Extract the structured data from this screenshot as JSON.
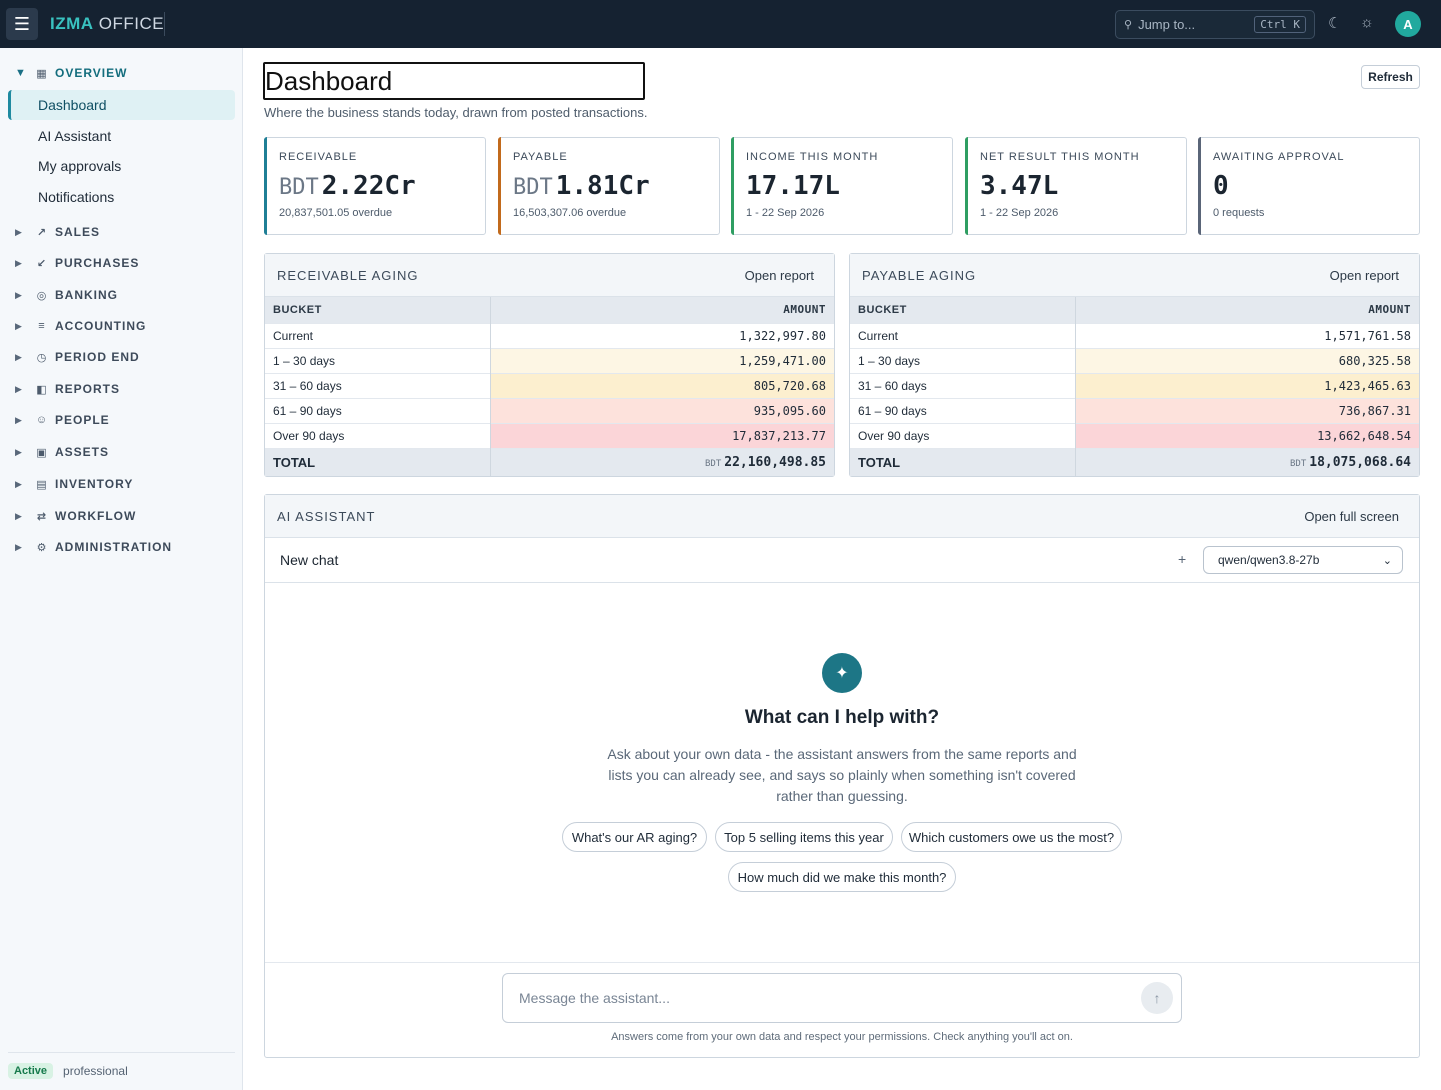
{
  "topbar": {
    "brand_accent": "IZMA",
    "brand_rest": "OFFICE",
    "jump_placeholder": "Jump to...",
    "jump_shortcut": "Ctrl K",
    "avatar_initial": "A"
  },
  "sidebar": {
    "groups": [
      {
        "label": "OVERVIEW",
        "icon": "grid-icon"
      },
      {
        "label": "SALES",
        "icon": "trend-up-icon"
      },
      {
        "label": "PURCHASES",
        "icon": "arrow-down-icon"
      },
      {
        "label": "BANKING",
        "icon": "bank-icon"
      },
      {
        "label": "ACCOUNTING",
        "icon": "list-icon"
      },
      {
        "label": "PERIOD END",
        "icon": "clock-icon"
      },
      {
        "label": "REPORTS",
        "icon": "report-icon"
      },
      {
        "label": "PEOPLE",
        "icon": "people-icon"
      },
      {
        "label": "ASSETS",
        "icon": "building-icon"
      },
      {
        "label": "INVENTORY",
        "icon": "box-icon"
      },
      {
        "label": "WORKFLOW",
        "icon": "swap-icon"
      },
      {
        "label": "ADMINISTRATION",
        "icon": "gear-icon"
      }
    ],
    "items": [
      "Dashboard",
      "AI Assistant",
      "My approvals",
      "Notifications"
    ],
    "status_badge": "Active",
    "plan": "professional"
  },
  "page": {
    "title": "Dashboard",
    "subtitle": "Where the business stands today, drawn from posted transactions.",
    "refresh_label": "Refresh"
  },
  "kpis": [
    {
      "label": "RECEIVABLE",
      "currency": "BDT",
      "value": "2.22Cr",
      "note": "20,837,501.05 overdue",
      "color": "#1f7f96"
    },
    {
      "label": "PAYABLE",
      "currency": "BDT",
      "value": "1.81Cr",
      "note": "16,503,307.06 overdue",
      "color": "#c26a1c"
    },
    {
      "label": "INCOME THIS MONTH",
      "currency": "",
      "value": "17.17L",
      "note": "1 - 22 Sep 2026",
      "color": "#2f9e62"
    },
    {
      "label": "NET RESULT THIS MONTH",
      "currency": "",
      "value": "3.47L",
      "note": "1 - 22 Sep 2026",
      "color": "#2f9e62"
    },
    {
      "label": "AWAITING APPROVAL",
      "currency": "",
      "value": "0",
      "note": "0 requests",
      "color": "#5a6578"
    }
  ],
  "receivable_aging": {
    "title": "RECEIVABLE AGING",
    "link": "Open report",
    "col_bucket": "BUCKET",
    "col_amount": "AMOUNT",
    "rows": [
      {
        "bucket": "Current",
        "amount": "1,322,997.80"
      },
      {
        "bucket": "1 – 30 days",
        "amount": "1,259,471.00"
      },
      {
        "bucket": "31 – 60 days",
        "amount": "805,720.68"
      },
      {
        "bucket": "61 – 90 days",
        "amount": "935,095.60"
      },
      {
        "bucket": "Over 90 days",
        "amount": "17,837,213.77"
      }
    ],
    "total_label": "TOTAL",
    "total_currency": "BDT",
    "total_amount": "22,160,498.85"
  },
  "payable_aging": {
    "title": "PAYABLE AGING",
    "link": "Open report",
    "col_bucket": "BUCKET",
    "col_amount": "AMOUNT",
    "rows": [
      {
        "bucket": "Current",
        "amount": "1,571,761.58"
      },
      {
        "bucket": "1 – 30 days",
        "amount": "680,325.58"
      },
      {
        "bucket": "31 – 60 days",
        "amount": "1,423,465.63"
      },
      {
        "bucket": "61 – 90 days",
        "amount": "736,867.31"
      },
      {
        "bucket": "Over 90 days",
        "amount": "13,662,648.54"
      }
    ],
    "total_label": "TOTAL",
    "total_currency": "BDT",
    "total_amount": "18,075,068.64"
  },
  "aging_colors": [
    "#ffffff",
    "#fdf6e4",
    "#fcefcf",
    "#fde2dc",
    "#fbd5d8"
  ],
  "assistant": {
    "title": "AI ASSISTANT",
    "link": "Open full screen",
    "chat_title": "New chat",
    "plus": "+",
    "model": "qwen/qwen3.8-27b",
    "heading": "What can I help with?",
    "intro": "Ask about your own data - the assistant answers from the same reports and lists you can already see, and says so plainly when something isn't covered rather than guessing.",
    "chips": [
      "What's our AR aging?",
      "Top 5 selling items this year",
      "Which customers owe us the most?",
      "How much did we make this month?"
    ],
    "input_placeholder": "Message the assistant...",
    "disclaimer": "Answers come from your own data and respect your permissions. Check anything you'll act on."
  }
}
